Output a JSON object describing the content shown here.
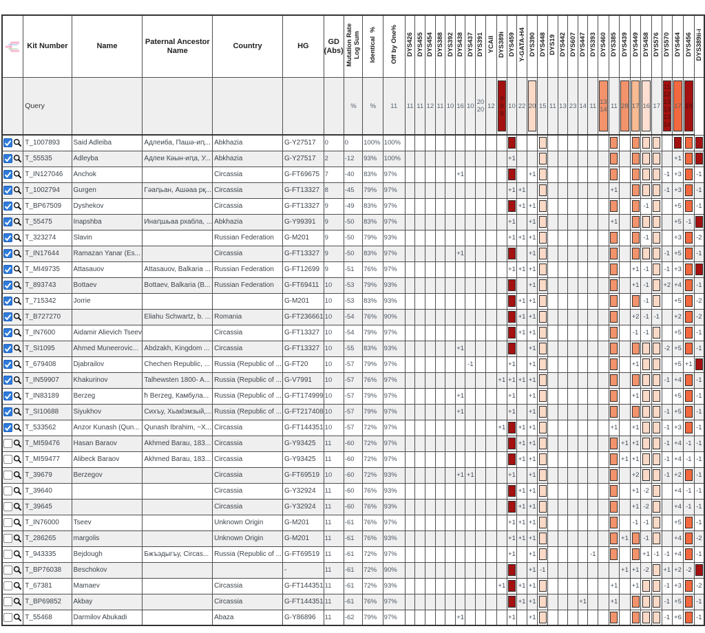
{
  "colors": {
    "darkred": "#a31110",
    "orange": "#f2693f",
    "salmon": "#f2936c",
    "peach": "#f8bb93",
    "pink": "#fbd9c7",
    "palepink": "#fcdfd2",
    "checkbox_on": "#2e7bdb",
    "stripe": "#efeff0"
  },
  "header": {
    "columns": [
      "Kit Number",
      "Name",
      "Paternal Ancestor\nName",
      "Country",
      "HG",
      "GD (Abs)"
    ],
    "rotated_columns": [
      "Mutation Rate\nLog Sum",
      "Identical  %",
      "Off by One%"
    ],
    "markers": [
      "DYS426",
      "DYS455",
      "DYS454",
      "DYS388",
      "DYS392",
      "DYS438",
      "DYS437",
      "DYS391",
      "YCAII",
      "DYS389i",
      "DYS459",
      "Y-GATA-H4",
      "DYS390",
      "DYS448",
      "DYS19",
      "DYS442",
      "DYS607",
      "DYS447",
      "DYS393",
      "DYS460",
      "DYS385",
      "DYS439",
      "DYS449",
      "DYS458",
      "DYS576",
      "DYS570",
      "DYS464",
      "DYS456",
      "DYS389ii-i"
    ]
  },
  "square_colors": {
    "10": "darkred",
    "13": "pink",
    "20": "salmon",
    "22": "salmon",
    "23": "pink",
    "24": "pink",
    "26": "darkred",
    "27": "orange",
    "28": "darkred"
  },
  "icons": {
    "checkbox": "row-checkbox",
    "magnifier": "magnifier-icon",
    "logo": "logo-image"
  },
  "query": {
    "label": "Query",
    "identical": "%",
    "off_by_one": "%",
    "markers": [
      {
        "v": "11"
      },
      {
        "v": "11"
      },
      {
        "v": "11"
      },
      {
        "v": "12"
      },
      {
        "v": "11"
      },
      {
        "v": "10"
      },
      {
        "v": "16"
      },
      {
        "v": "10"
      },
      {
        "v": "20\n20"
      },
      {
        "v": "12"
      },
      {
        "v": "9\n9\n9",
        "bg": "darkred",
        "fg": "#47100b"
      },
      {
        "v": "10"
      },
      {
        "v": "22"
      },
      {
        "v": "20",
        "bg": "pink"
      },
      {
        "v": "15"
      },
      {
        "v": "11"
      },
      {
        "v": "13"
      },
      {
        "v": "23"
      },
      {
        "v": "14"
      },
      {
        "v": "11"
      },
      {
        "v": "13\n14",
        "bg": "salmon"
      },
      {
        "v": "11"
      },
      {
        "v": "28",
        "bg": "salmon"
      },
      {
        "v": "17",
        "bg": "peach"
      },
      {
        "v": "16",
        "bg": "palepink"
      },
      {
        "v": "17"
      },
      {
        "v": "11\n12\n13\n13\n13\n14",
        "bg": "darkred",
        "fg": "#47100b"
      },
      {
        "v": "17",
        "bg": "orange"
      },
      {
        "v": "19",
        "bg": "darkred",
        "fg": "#47100b"
      }
    ]
  },
  "rows": [
    {
      "kit": "T_1007893",
      "name": "Said Adleiba",
      "pat": "Адлеиба, Пашә-иԥ...",
      "country": "Abkhazia",
      "hg": "G-Y27517",
      "gd": "0",
      "mut": "0",
      "ident": "100%",
      "off": "100%",
      "checked": true,
      "m": {
        "10": "#",
        "13": "#",
        "20": "#",
        "22": "#",
        "23": "#",
        "24": "#",
        "26": "#",
        "27": "#",
        "28": "#"
      }
    },
    {
      "kit": "T_55535",
      "name": "Adleyba",
      "pat": "Адлеи Кәын-иԥа, У...",
      "country": "Abkhazia",
      "hg": "G-Y27517",
      "gd": "2",
      "mut": "-12",
      "ident": "93%",
      "off": "100%",
      "checked": true,
      "m": {
        "10": "+1",
        "13": "#",
        "20": "#",
        "22": "#",
        "23": "#",
        "24": "#",
        "26": "+1",
        "27": "#",
        "28": "#"
      }
    },
    {
      "kit": "T_IN127046",
      "name": "Anchok",
      "pat": "",
      "country": "Circassia",
      "hg": "G-FT69675",
      "gd": "7",
      "mut": "-40",
      "ident": "83%",
      "off": "97%",
      "checked": true,
      "m": {
        "5": "+1",
        "10": "#",
        "12": "+1",
        "13": "#",
        "20": "#",
        "22": "#",
        "23": "#",
        "24": "#",
        "25": "-1",
        "26": "+3",
        "27": "#",
        "28": "-1"
      }
    },
    {
      "kit": "T_1002794",
      "name": "Gurgen",
      "pat": "Гәаԥьан, Ашәаа рқ...",
      "country": "Circassia",
      "hg": "G-FT13327",
      "gd": "8",
      "mut": "-45",
      "ident": "79%",
      "off": "97%",
      "checked": true,
      "m": {
        "10": "+1",
        "11": "+1",
        "13": "#",
        "20": "+1",
        "22": "#",
        "23": "#",
        "24": "#",
        "25": "-1",
        "26": "+3",
        "27": "#",
        "28": "-1"
      }
    },
    {
      "kit": "T_BP67509",
      "name": "Dyshekov",
      "pat": "",
      "country": "Circassia",
      "hg": "G-FT13327",
      "gd": "9",
      "mut": "-49",
      "ident": "83%",
      "off": "97%",
      "checked": true,
      "m": {
        "10": "#",
        "11": "+1",
        "12": "+1",
        "13": "#",
        "20": "#",
        "22": "#",
        "23": "-1",
        "24": "#",
        "26": "+5",
        "27": "#",
        "28": "-1"
      }
    },
    {
      "kit": "T_55475",
      "name": "Inapshba",
      "pat": "Инаԥшьаа рхабла, ...",
      "country": "Abkhazia",
      "hg": "G-Y99391",
      "gd": "9",
      "mut": "-50",
      "ident": "83%",
      "off": "97%",
      "checked": true,
      "m": {
        "10": "+1",
        "12": "+1",
        "13": "#",
        "20": "+1",
        "22": "#",
        "23": "#",
        "24": "#",
        "26": "+5",
        "27": "-1",
        "28": "#"
      }
    },
    {
      "kit": "T_323274",
      "name": "Slavin",
      "pat": "",
      "country": "Russian Federation",
      "hg": "G-M201",
      "gd": "9",
      "mut": "-50",
      "ident": "79%",
      "off": "93%",
      "checked": true,
      "m": {
        "10": "+1",
        "11": "+1",
        "12": "+1",
        "13": "#",
        "20": "#",
        "22": "#",
        "23": "-1",
        "24": "#",
        "26": "+3",
        "27": "#",
        "28": "-2"
      }
    },
    {
      "kit": "T_IN17644",
      "name": "Ramazan Yanar (Es...",
      "pat": "",
      "country": "Circassia",
      "hg": "G-FT13327",
      "gd": "9",
      "mut": "-50",
      "ident": "83%",
      "off": "97%",
      "checked": true,
      "m": {
        "5": "+1",
        "10": "#",
        "12": "+1",
        "13": "#",
        "20": "#",
        "22": "#",
        "23": "#",
        "24": "#",
        "25": "-1",
        "26": "+5",
        "27": "#",
        "28": "-1"
      }
    },
    {
      "kit": "T_MI49735",
      "name": "Attasauov",
      "pat": "Attasauov, Balkaria ...",
      "country": "Russian Federation",
      "hg": "G-FT12699",
      "gd": "9",
      "mut": "-51",
      "ident": "76%",
      "off": "97%",
      "checked": true,
      "m": {
        "10": "+1",
        "11": "+1",
        "12": "+1",
        "13": "#",
        "20": "#",
        "22": "+1",
        "23": "-1",
        "24": "#",
        "25": "-1",
        "26": "+3",
        "27": "#",
        "28": "#"
      }
    },
    {
      "kit": "T_893743",
      "name": "Bottaev",
      "pat": "Bottaev, Balkaria (B...",
      "country": "Russian Federation",
      "hg": "G-FT69411",
      "gd": "10",
      "mut": "-53",
      "ident": "79%",
      "off": "93%",
      "checked": true,
      "m": {
        "10": "#",
        "12": "+1",
        "13": "#",
        "20": "#",
        "22": "+1",
        "23": "-1",
        "24": "#",
        "25": "+2",
        "26": "+4",
        "27": "#",
        "28": "-1"
      }
    },
    {
      "kit": "T_715342",
      "name": "Jorrie",
      "pat": "",
      "country": "",
      "hg": "G-M201",
      "gd": "10",
      "mut": "-53",
      "ident": "83%",
      "off": "93%",
      "checked": true,
      "m": {
        "10": "#",
        "11": "+1",
        "12": "+1",
        "13": "#",
        "20": "#",
        "22": "#",
        "23": "-1",
        "24": "#",
        "26": "+5",
        "27": "#",
        "28": "-2"
      }
    },
    {
      "kit": "T_B727270",
      "name": "",
      "pat": "Eliahu Schwartz, b. ...",
      "country": "Romania",
      "hg": "G-FT236661",
      "gd": "10",
      "mut": "-54",
      "ident": "76%",
      "off": "90%",
      "checked": true,
      "m": {
        "10": "#",
        "11": "+1",
        "12": "+1",
        "13": "#",
        "20": "#",
        "22": "+2",
        "23": "-1",
        "24": "-1",
        "26": "+2",
        "27": "#",
        "28": "-2"
      }
    },
    {
      "kit": "T_IN7600",
      "name": "Aidamir Alievich Tseev",
      "pat": "",
      "country": "Circassia",
      "hg": "G-FT13327",
      "gd": "10",
      "mut": "-54",
      "ident": "79%",
      "off": "97%",
      "checked": true,
      "m": {
        "10": "#",
        "11": "+1",
        "12": "+1",
        "13": "#",
        "20": "#",
        "22": "-1",
        "23": "-1",
        "24": "#",
        "26": "+5",
        "27": "#",
        "28": "-1"
      }
    },
    {
      "kit": "T_SI1095",
      "name": "Ahmed Muneerovic...",
      "pat": "Abdzakh, Kingdom ...",
      "country": "Circassia",
      "hg": "G-FT13327",
      "gd": "10",
      "mut": "-55",
      "ident": "83%",
      "off": "93%",
      "checked": true,
      "m": {
        "5": "+1",
        "10": "#",
        "12": "+1",
        "13": "#",
        "20": "#",
        "22": "#",
        "23": "#",
        "24": "#",
        "25": "-2",
        "26": "+5",
        "27": "#",
        "28": "-1"
      }
    },
    {
      "kit": "T_679408",
      "name": "Djabrailov",
      "pat": "Chechen Republic, ...",
      "country": "Russia (Republic of ...",
      "hg": "G-FT20",
      "gd": "10",
      "mut": "-57",
      "ident": "79%",
      "off": "97%",
      "checked": true,
      "m": {
        "6": "-1",
        "10": "+1",
        "12": "+1",
        "13": "#",
        "20": "#",
        "22": "+1",
        "23": "#",
        "24": "#",
        "26": "+5",
        "27": "+1",
        "28": "#"
      }
    },
    {
      "kit": "T_IN59907",
      "name": "Khakurinov",
      "pat": "Talhewsten 1800- A...",
      "country": "Russia (Republic of ...",
      "hg": "G-V7991",
      "gd": "10",
      "mut": "-57",
      "ident": "76%",
      "off": "97%",
      "checked": true,
      "m": {
        "9": "+1",
        "10": "+1",
        "11": "+1",
        "12": "+1",
        "13": "#",
        "20": "#",
        "22": "#",
        "23": "#",
        "24": "#",
        "25": "-1",
        "26": "+4",
        "27": "#",
        "28": "-1"
      }
    },
    {
      "kit": "T_IN83189",
      "name": "Berzeg",
      "pat": "ћ Berzeg, Камбула...",
      "country": "Russia (Republic of ...",
      "hg": "G-FT174999",
      "gd": "10",
      "mut": "-57",
      "ident": "79%",
      "off": "97%",
      "checked": true,
      "m": {
        "5": "+1",
        "10": "+1",
        "12": "+1",
        "13": "#",
        "20": "#",
        "22": "+1",
        "23": "#",
        "24": "#",
        "26": "+5",
        "27": "#",
        "28": "-1"
      }
    },
    {
      "kit": "T_SI10688",
      "name": "Siyukhov",
      "pat": "Сихъу, Хьакӏэмзый,...",
      "country": "Russia (Republic of ...",
      "hg": "G-FT217408",
      "gd": "10",
      "mut": "-57",
      "ident": "79%",
      "off": "97%",
      "checked": true,
      "m": {
        "5": "+1",
        "10": "+1",
        "12": "+1",
        "13": "#",
        "20": "#",
        "22": "#",
        "23": "#",
        "24": "#",
        "25": "-1",
        "26": "+5",
        "27": "#",
        "28": "-1"
      }
    },
    {
      "kit": "T_533562",
      "name": "Anzor Kunash (Qun...",
      "pat": "Qunash Ibrahim, ~X...",
      "country": "Circassia",
      "hg": "G-FT144351",
      "gd": "10",
      "mut": "-57",
      "ident": "72%",
      "off": "97%",
      "checked": true,
      "m": {
        "9": "+1",
        "10": "#",
        "11": "+1",
        "12": "+1",
        "13": "#",
        "20": "+1",
        "22": "+1",
        "23": "#",
        "24": "#",
        "25": "-1",
        "26": "+3",
        "27": "#",
        "28": "-1"
      }
    },
    {
      "kit": "T_MI59476",
      "name": "Hasan Baraov",
      "pat": "Akhmed Barau, 183...",
      "country": "Circassia",
      "hg": "G-Y93425",
      "gd": "11",
      "mut": "-60",
      "ident": "72%",
      "off": "97%",
      "checked": false,
      "m": {
        "10": "#",
        "11": "+1",
        "12": "+1",
        "13": "#",
        "20": "#",
        "21": "+1",
        "22": "+1",
        "23": "#",
        "24": "#",
        "25": "-1",
        "26": "+4",
        "27": "-1",
        "28": "-1"
      }
    },
    {
      "kit": "T_MI59477",
      "name": "Alibeck Baraov",
      "pat": "Akhmed Barau, 183...",
      "country": "Circassia",
      "hg": "G-Y93425",
      "gd": "11",
      "mut": "-60",
      "ident": "72%",
      "off": "97%",
      "checked": false,
      "m": {
        "10": "#",
        "11": "+1",
        "12": "+1",
        "13": "#",
        "20": "#",
        "21": "+1",
        "22": "+1",
        "23": "#",
        "24": "#",
        "25": "-1",
        "26": "+4",
        "27": "-1",
        "28": "-1"
      }
    },
    {
      "kit": "T_39679",
      "name": "Berzegov",
      "pat": "",
      "country": "Circassia",
      "hg": "G-FT69519",
      "gd": "10",
      "mut": "-60",
      "ident": "72%",
      "off": "93%",
      "checked": false,
      "m": {
        "5": "+1",
        "6": "+1",
        "10": "+1",
        "12": "+1",
        "13": "#",
        "20": "#",
        "22": "+2",
        "23": "#",
        "24": "#",
        "25": "-1",
        "26": "+2",
        "27": "#",
        "28": "-1"
      }
    },
    {
      "kit": "T_39640",
      "name": "",
      "pat": "",
      "country": "Circassia",
      "hg": "G-Y32924",
      "gd": "11",
      "mut": "-60",
      "ident": "76%",
      "off": "93%",
      "checked": false,
      "m": {
        "10": "#",
        "11": "+1",
        "12": "+1",
        "13": "#",
        "20": "#",
        "22": "+1",
        "23": "-2",
        "24": "#",
        "26": "+4",
        "27": "-1",
        "28": "-1"
      }
    },
    {
      "kit": "T_39645",
      "name": "",
      "pat": "",
      "country": "Circassia",
      "hg": "G-Y32924",
      "gd": "11",
      "mut": "-60",
      "ident": "76%",
      "off": "93%",
      "checked": false,
      "m": {
        "10": "#",
        "11": "+1",
        "12": "+1",
        "13": "#",
        "20": "#",
        "22": "+1",
        "23": "-2",
        "24": "#",
        "26": "+4",
        "27": "-1",
        "28": "-1"
      }
    },
    {
      "kit": "T_IN76000",
      "name": "Tseev",
      "pat": "",
      "country": "Unknown Origin",
      "hg": "G-M201",
      "gd": "11",
      "mut": "-61",
      "ident": "76%",
      "off": "97%",
      "checked": false,
      "m": {
        "10": "+1",
        "11": "+1",
        "12": "+1",
        "13": "#",
        "20": "#",
        "22": "-1",
        "23": "-1",
        "24": "#",
        "26": "+5",
        "27": "#",
        "28": "-1"
      }
    },
    {
      "kit": "T_286265",
      "name": "margolis",
      "pat": "",
      "country": "Unknown Origin",
      "hg": "G-M201",
      "gd": "11",
      "mut": "-61",
      "ident": "76%",
      "off": "93%",
      "checked": false,
      "m": {
        "10": "+1",
        "11": "+1",
        "12": "+1",
        "13": "#",
        "20": "#",
        "21": "+1",
        "22": "#",
        "23": "-1",
        "24": "#",
        "26": "+4",
        "27": "#",
        "28": "-2"
      }
    },
    {
      "kit": "T_943335",
      "name": "Bejdough",
      "pat": "Бжъэдыгъу, Circas...",
      "country": "Russia (Republic of ...",
      "hg": "G-FT69519",
      "gd": "11",
      "mut": "-61",
      "ident": "72%",
      "off": "97%",
      "checked": false,
      "m": {
        "10": "+1",
        "12": "+1",
        "13": "#",
        "18": "-1",
        "20": "#",
        "22": "#",
        "23": "+1",
        "24": "-1",
        "25": "-1",
        "26": "+4",
        "27": "#",
        "28": "-1"
      }
    },
    {
      "kit": "T_BP76038",
      "name": "Beschokov",
      "pat": "",
      "country": "",
      "hg": "-",
      "gd": "11",
      "mut": "-61",
      "ident": "72%",
      "off": "90%",
      "checked": false,
      "m": {
        "10": "#",
        "12": "+1",
        "13": "-1",
        "21": "+1",
        "22": "+1",
        "23": "-2",
        "24": "#",
        "25": "+1",
        "26": "+2",
        "27": "-2",
        "28": "#"
      }
    },
    {
      "kit": "T_67381",
      "name": "Mamaev",
      "pat": "",
      "country": "Circassia",
      "hg": "G-FT144351",
      "gd": "11",
      "mut": "-61",
      "ident": "72%",
      "off": "93%",
      "checked": false,
      "m": {
        "9": "+1",
        "10": "#",
        "11": "+1",
        "12": "+1",
        "13": "#",
        "20": "+1",
        "22": "+1",
        "23": "#",
        "24": "#",
        "25": "-1",
        "26": "+3",
        "27": "#",
        "28": "-2"
      }
    },
    {
      "kit": "T_BP69852",
      "name": "Akbay",
      "pat": "",
      "country": "Circassia",
      "hg": "G-FT144351",
      "gd": "11",
      "mut": "-61",
      "ident": "76%",
      "off": "97%",
      "checked": false,
      "m": {
        "10": "#",
        "11": "+1",
        "12": "+1",
        "13": "#",
        "17": "+1",
        "20": "+1",
        "22": "#",
        "23": "#",
        "24": "#",
        "25": "-1",
        "26": "+5",
        "27": "#",
        "28": "-1"
      }
    },
    {
      "kit": "T_55468",
      "name": "Darmilov Abukadi",
      "pat": "",
      "country": "Abaza",
      "hg": "G-Y86896",
      "gd": "11",
      "mut": "-62",
      "ident": "79%",
      "off": "97%",
      "checked": false,
      "m": {
        "5": "+1",
        "10": "+1",
        "12": "+1",
        "13": "#",
        "20": "#",
        "22": "#",
        "23": "#",
        "24": "#",
        "25": "-1",
        "26": "+6",
        "27": "#",
        "28": "-1"
      }
    }
  ]
}
